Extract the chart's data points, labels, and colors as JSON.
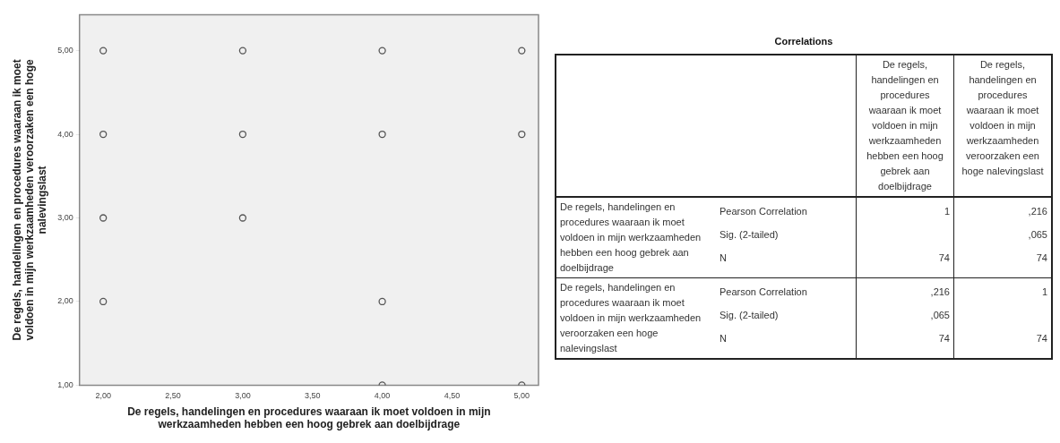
{
  "chart_data": [
    {
      "type": "scatter",
      "xlabel": "De regels, handelingen en procedures waaraan ik moet voldoen in mijn werkzaamheden hebben een hoog gebrek aan doelbijdrage",
      "ylabel": "De regels, handelingen en procedures waaraan ik moet voldoen in mijn werkzaamheden veroorzaken een hoge nalevingslast",
      "x": [
        2,
        2,
        2,
        2,
        3,
        3,
        3,
        4,
        4,
        4,
        4,
        5,
        5,
        5
      ],
      "values": [
        5,
        4,
        3,
        2,
        5,
        4,
        3,
        5,
        4,
        2,
        1,
        5,
        4,
        1
      ],
      "color": "#555555",
      "marker": "circle",
      "grid": false,
      "legend": false,
      "xlim": [
        1.83,
        5.12
      ],
      "ylim": [
        1,
        5.43
      ],
      "xticks": [
        {
          "value": 2,
          "label": "2,00"
        },
        {
          "value": 2.5,
          "label": "2,50"
        },
        {
          "value": 3,
          "label": "3,00"
        },
        {
          "value": 3.5,
          "label": "3,50"
        },
        {
          "value": 4,
          "label": "4,00"
        },
        {
          "value": 4.5,
          "label": "4,50"
        },
        {
          "value": 5,
          "label": "5,00"
        }
      ],
      "yticks": [
        {
          "value": 1,
          "label": "1,00"
        },
        {
          "value": 2,
          "label": "2,00"
        },
        {
          "value": 3,
          "label": "3,00"
        },
        {
          "value": 4,
          "label": "4,00"
        },
        {
          "value": 5,
          "label": "5,00"
        }
      ]
    },
    {
      "type": "other",
      "title": "Correlations",
      "annotations": [
        "De regels, handelingen en procedures waaraan ik moet voldoen in mijn werkzaamheden hebben een hoog gebrek aan doelbijdrage",
        "De regels, handelingen en procedures waaraan ik moet voldoen in mijn werkzaamheden veroorzaken een hoge nalevingslast",
        "De regels, handelingen en procedures waaraan ik moet voldoen in mijn werkzaamheden hebben een hoog gebrek aan doelbijdrage",
        "De regels, handelingen en procedures waaraan ik moet voldoen in mijn werkzaamheden veroorzaken een hoge nalevingslast",
        "Pearson Correlation",
        "Sig. (2-tailed)",
        "N",
        "1",
        "74",
        ",216",
        ",065",
        "74",
        ",216",
        ",065",
        "74",
        "1",
        "74"
      ]
    }
  ]
}
